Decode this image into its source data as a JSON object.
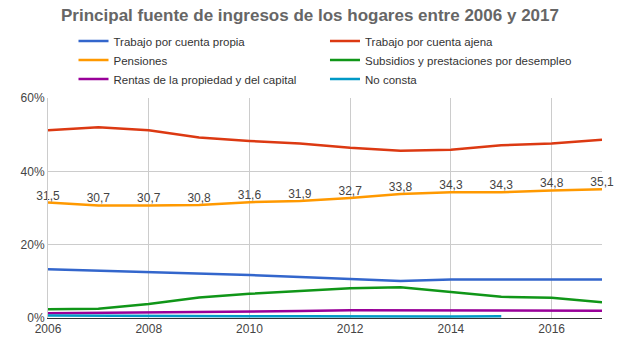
{
  "chart_data": {
    "type": "line",
    "title": "Principal fuente de ingresos de los hogares entre 2006 y 2017",
    "x": [
      2006,
      2007,
      2008,
      2009,
      2010,
      2011,
      2012,
      2013,
      2014,
      2015,
      2016,
      2017
    ],
    "xlim": [
      2006,
      2017
    ],
    "xticks": [
      2006,
      2008,
      2010,
      2012,
      2014,
      2016
    ],
    "ylim": [
      0,
      60
    ],
    "yticks": [
      {
        "value": 0,
        "label": "0%"
      },
      {
        "value": 20,
        "label": "20%"
      },
      {
        "value": 40,
        "label": "40%"
      },
      {
        "value": 60,
        "label": "60%"
      }
    ],
    "grid": true,
    "legend": "top",
    "series": [
      {
        "name": "Trabajo por cuenta propia",
        "color": "#3366cc",
        "values": [
          13.3,
          12.9,
          12.6,
          12.3,
          11.7,
          11.2,
          10.7,
          10.1,
          10.5,
          10.6,
          10.5,
          10.5
        ]
      },
      {
        "name": "Trabajo por cuenta ajena",
        "color": "#dc3912",
        "values": [
          51.2,
          52.0,
          51.2,
          49.2,
          48.3,
          47.6,
          46.4,
          45.6,
          45.9,
          47.1,
          47.6,
          48.6
        ]
      },
      {
        "name": "Pensiones",
        "color": "#ff9900",
        "data_labels": true,
        "values": [
          31.5,
          30.7,
          30.7,
          30.8,
          31.6,
          31.9,
          32.7,
          33.8,
          34.3,
          34.3,
          34.8,
          35.1
        ],
        "value_labels": [
          "31,5",
          "30,7",
          "30,7",
          "30,8",
          "31,6",
          "31,9",
          "32,7",
          "33,8",
          "34,3",
          "34,3",
          "34,8",
          "35,1"
        ]
      },
      {
        "name": "Subsidios y prestaciones por desempleo",
        "color": "#109618",
        "values": [
          2.4,
          2.5,
          3.8,
          5.6,
          6.6,
          7.3,
          8.1,
          8.4,
          7.0,
          5.8,
          5.5,
          4.3
        ]
      },
      {
        "name": "Rentas de la propiedad y del capital",
        "color": "#990099",
        "values": [
          1.3,
          1.4,
          1.5,
          1.7,
          1.7,
          1.9,
          2.1,
          2.1,
          2.2,
          2.2,
          2.0,
          2.0
        ]
      },
      {
        "name": "No consta",
        "color": "#0099c6",
        "values": [
          0.7,
          0.6,
          0.6,
          0.6,
          0.5,
          0.5,
          0.4,
          0.4,
          0.4,
          0.5,
          null,
          null
        ]
      }
    ]
  }
}
